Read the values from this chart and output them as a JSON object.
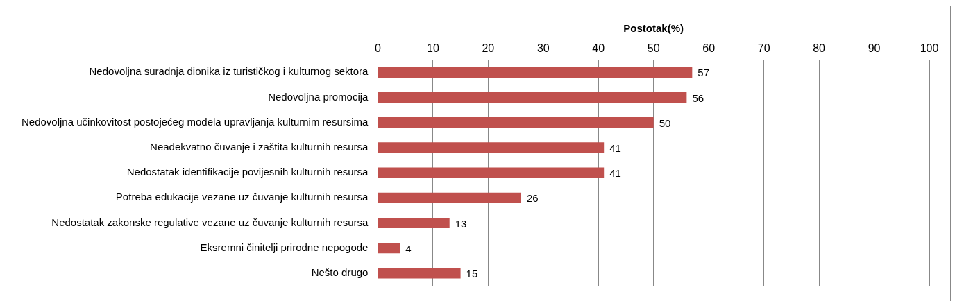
{
  "chart_data": {
    "type": "bar",
    "orientation": "horizontal",
    "xlabel": "Postotak(%)",
    "categories": [
      "Nedovoljna suradnja dionika iz turističkog i kulturnog sektora",
      "Nedovoljna promocija",
      "Nedovoljna učinkovitost postojećeg modela upravljanja kulturnim resursima",
      "Neadekvatno čuvanje i zaštita kulturnih resursa",
      "Nedostatak identifikacije povijesnih kulturnih resursa",
      "Potreba edukacije vezane uz čuvanje kulturnih resursa",
      "Nedostatak zakonske regulative vezane uz čuvanje kulturnih resursa",
      "Eksremni činitelji prirodne nepogode",
      "Nešto drugo"
    ],
    "values": [
      57,
      56,
      50,
      41,
      41,
      26,
      13,
      4,
      15
    ],
    "color": "#c0504d",
    "xlim": [
      0,
      100
    ],
    "xticks": [
      0,
      10,
      20,
      30,
      40,
      50,
      60,
      70,
      80,
      90,
      100
    ],
    "grid": "x",
    "legend": false,
    "data_labels": true
  }
}
